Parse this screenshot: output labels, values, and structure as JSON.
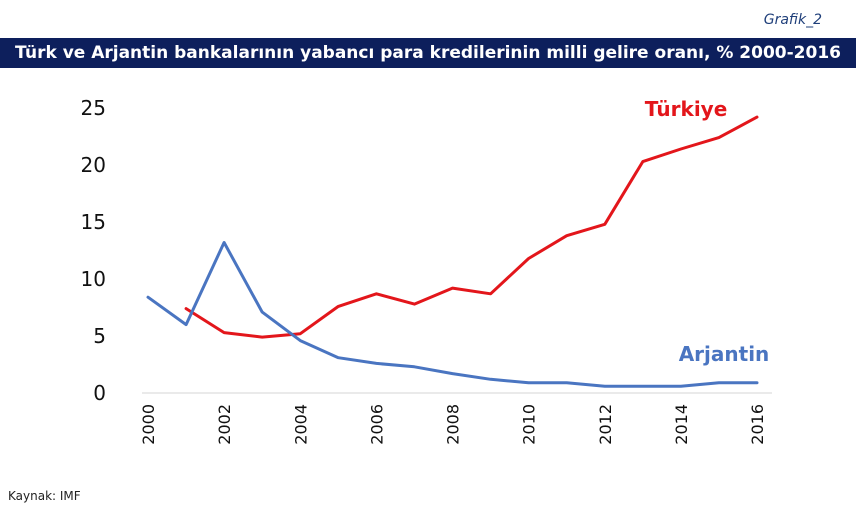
{
  "header": {
    "grafik_label": "Grafik_2",
    "title": "Türk ve Arjantin bankalarının yabancı para kredilerinin milli gelire oranı, % 2000-2016"
  },
  "footer": {
    "source": "Kaynak: IMF"
  },
  "chart_data": {
    "type": "line",
    "title": "Türk ve Arjantin bankalarının yabancı para kredilerinin milli gelire oranı, % 2000-2016",
    "xlabel": "",
    "ylabel": "",
    "xlim": [
      2000,
      2016
    ],
    "ylim": [
      0,
      25
    ],
    "yticks": [
      0,
      5,
      10,
      15,
      20,
      25
    ],
    "xticks": [
      2000,
      2002,
      2004,
      2006,
      2008,
      2010,
      2012,
      2014,
      2016
    ],
    "grid": false,
    "legend": "inline labels",
    "series": [
      {
        "name": "Türkiye",
        "color": "#e3161b",
        "x": [
          2001,
          2002,
          2003,
          2004,
          2005,
          2006,
          2007,
          2008,
          2009,
          2010,
          2011,
          2012,
          2013,
          2014,
          2015,
          2016
        ],
        "values": [
          7.4,
          5.3,
          4.9,
          5.2,
          7.6,
          8.7,
          7.8,
          9.2,
          8.7,
          11.8,
          13.8,
          14.8,
          20.3,
          21.4,
          22.4,
          24.2
        ]
      },
      {
        "name": "Arjantin",
        "color": "#4a75c1",
        "x": [
          2000,
          2001,
          2002,
          2003,
          2004,
          2005,
          2006,
          2007,
          2008,
          2009,
          2010,
          2011,
          2012,
          2013,
          2014,
          2015,
          2016
        ],
        "values": [
          8.4,
          6.0,
          13.2,
          7.1,
          4.6,
          3.1,
          2.6,
          2.3,
          1.7,
          1.2,
          0.9,
          0.9,
          0.6,
          0.6,
          0.6,
          0.9,
          0.9
        ]
      }
    ]
  }
}
